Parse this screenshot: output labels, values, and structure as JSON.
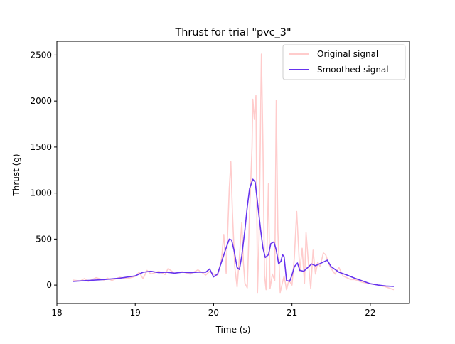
{
  "chart_data": {
    "type": "line",
    "title": "Thrust for trial \"pvc_3\"",
    "xlabel": "Time (s)",
    "ylabel": "Thrust (g)",
    "xlim": [
      18.0,
      22.5
    ],
    "ylim": [
      -200,
      2650
    ],
    "x_ticks": [
      18,
      19,
      20,
      21,
      22
    ],
    "y_ticks": [
      0,
      500,
      1000,
      1500,
      2000,
      2500
    ],
    "legend_position": "top-right",
    "grid": false,
    "series": [
      {
        "name": "Original signal",
        "color": "#ffcccc",
        "x": [
          18.2,
          18.3,
          18.35,
          18.4,
          18.5,
          18.6,
          18.65,
          18.7,
          18.8,
          18.9,
          19.0,
          19.05,
          19.1,
          19.15,
          19.2,
          19.3,
          19.38,
          19.42,
          19.5,
          19.6,
          19.7,
          19.8,
          19.9,
          19.95,
          20.0,
          20.05,
          20.1,
          20.13,
          20.16,
          20.2,
          20.22,
          20.24,
          20.27,
          20.3,
          20.33,
          20.36,
          20.38,
          20.4,
          20.43,
          20.46,
          20.49,
          20.5,
          20.52,
          20.54,
          20.56,
          20.58,
          20.61,
          20.63,
          20.65,
          20.67,
          20.7,
          20.72,
          20.75,
          20.78,
          20.8,
          20.82,
          20.85,
          20.88,
          20.9,
          20.93,
          20.96,
          21.0,
          21.03,
          21.06,
          21.1,
          21.13,
          21.16,
          21.18,
          21.21,
          21.24,
          21.27,
          21.3,
          21.33,
          21.36,
          21.4,
          21.43,
          21.47,
          21.5,
          21.55,
          21.6,
          21.65,
          21.7,
          21.75,
          21.8,
          21.9,
          22.0,
          22.1,
          22.2,
          22.3
        ],
        "y": [
          55,
          45,
          70,
          40,
          80,
          55,
          75,
          50,
          85,
          70,
          95,
          140,
          70,
          160,
          120,
          150,
          115,
          180,
          130,
          145,
          120,
          165,
          110,
          150,
          120,
          100,
          280,
          550,
          130,
          1050,
          1340,
          800,
          200,
          -20,
          310,
          680,
          250,
          20,
          -30,
          800,
          1500,
          2020,
          1800,
          2060,
          -80,
          500,
          2510,
          1500,
          100,
          -50,
          1100,
          -40,
          120,
          50,
          2010,
          600,
          -80,
          30,
          100,
          -50,
          50,
          0,
          300,
          800,
          150,
          400,
          20,
          570,
          240,
          -40,
          380,
          120,
          250,
          200,
          350,
          330,
          230,
          180,
          120,
          190,
          100,
          80,
          60,
          60,
          30,
          15,
          0,
          -20,
          -50
        ]
      },
      {
        "name": "Smoothed signal",
        "color": "#6633ee",
        "x": [
          18.2,
          18.4,
          18.6,
          18.8,
          19.0,
          19.1,
          19.2,
          19.3,
          19.4,
          19.5,
          19.6,
          19.7,
          19.8,
          19.9,
          19.95,
          20.0,
          20.05,
          20.1,
          20.15,
          20.2,
          20.23,
          20.26,
          20.3,
          20.33,
          20.36,
          20.4,
          20.43,
          20.46,
          20.5,
          20.53,
          20.56,
          20.6,
          20.63,
          20.66,
          20.7,
          20.73,
          20.77,
          20.8,
          20.83,
          20.86,
          20.88,
          20.9,
          20.93,
          20.97,
          21.0,
          21.03,
          21.07,
          21.1,
          21.15,
          21.2,
          21.25,
          21.3,
          21.35,
          21.4,
          21.45,
          21.5,
          21.6,
          21.7,
          21.8,
          21.9,
          22.0,
          22.1,
          22.2,
          22.3
        ],
        "y": [
          40,
          50,
          60,
          75,
          100,
          140,
          150,
          135,
          140,
          130,
          140,
          135,
          140,
          140,
          175,
          90,
          120,
          250,
          380,
          500,
          490,
          380,
          190,
          170,
          320,
          600,
          850,
          1050,
          1150,
          1120,
          900,
          600,
          400,
          300,
          330,
          450,
          470,
          380,
          230,
          260,
          330,
          310,
          50,
          40,
          110,
          200,
          240,
          160,
          150,
          190,
          230,
          210,
          230,
          250,
          270,
          200,
          140,
          110,
          75,
          45,
          15,
          0,
          -10,
          -15
        ]
      }
    ]
  }
}
